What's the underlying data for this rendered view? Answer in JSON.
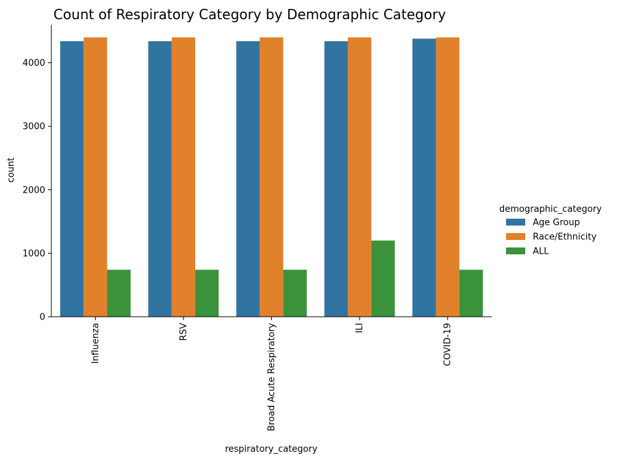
{
  "chart_data": {
    "type": "bar",
    "title": "Count of Respiratory Category by Demographic Category",
    "xlabel": "respiratory_category",
    "ylabel": "count",
    "ylim": [
      0,
      4600
    ],
    "yticks": [
      0,
      1000,
      2000,
      3000,
      4000
    ],
    "categories": [
      "Influenza",
      "RSV",
      "Broad Acute Respiratory",
      "ILI",
      "COVID-19"
    ],
    "legend": {
      "title": "demographic_category",
      "placement": "right"
    },
    "grid": false,
    "series": [
      {
        "name": "Age Group",
        "color": "#3274a1",
        "values": [
          4340,
          4340,
          4340,
          4340,
          4380
        ]
      },
      {
        "name": "Race/Ethnicity",
        "color": "#e1812c",
        "values": [
          4400,
          4400,
          4400,
          4400,
          4400
        ]
      },
      {
        "name": "ALL",
        "color": "#3a923a",
        "values": [
          740,
          740,
          740,
          1200,
          740
        ]
      }
    ]
  }
}
